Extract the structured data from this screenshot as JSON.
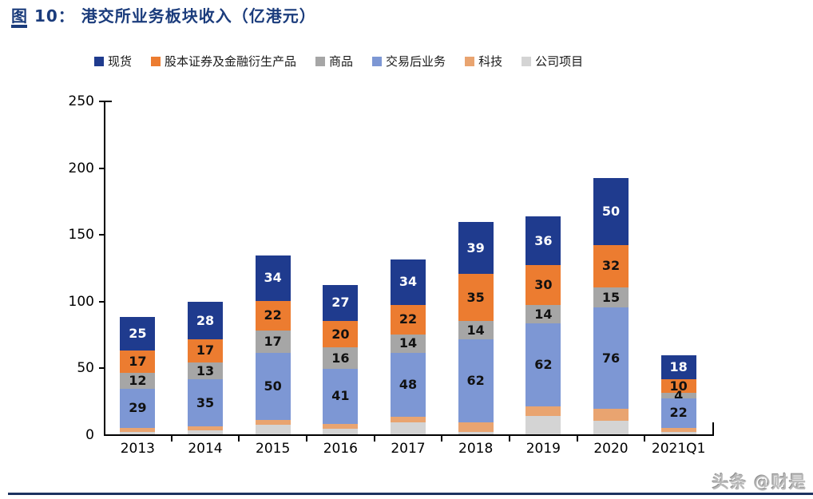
{
  "title": "图 10：  港交所业务板块收入（亿港元）",
  "watermark": "头条 @财是",
  "colors": {
    "title": "#1B3C7C",
    "bottom_rule": "#1C3260",
    "axis": "#000000",
    "navy": "#1F3B8E",
    "orange": "#EC7C30",
    "gray": "#A6A6A6",
    "light_blue": "#7D97D4",
    "tan": "#E9A470",
    "light_gray": "#D4D4D4"
  },
  "chart_data": {
    "type": "bar",
    "subtype": "stacked-column",
    "title": "港交所业务板块收入（亿港元）",
    "xlabel": "",
    "ylabel": "",
    "ylim": [
      0,
      250
    ],
    "yticks": [
      0,
      50,
      100,
      150,
      200,
      250
    ],
    "grid": false,
    "legend_position": "top",
    "categories": [
      "2013",
      "2014",
      "2015",
      "2016",
      "2017",
      "2018",
      "2019",
      "2020",
      "2021Q1"
    ],
    "stack_order_bottom_to_top": [
      "corporate-items",
      "technology",
      "post-trade",
      "commodities",
      "equity-derivatives",
      "spot"
    ],
    "series": [
      {
        "key": "spot",
        "name": "现货",
        "color": "#1F3B8E",
        "label_color": "#ffffff",
        "show_labels": true,
        "values": [
          25,
          28,
          34,
          27,
          34,
          39,
          36,
          50,
          18
        ]
      },
      {
        "key": "equity-derivatives",
        "name": "股本证券及金融衍生产品",
        "color": "#EC7C30",
        "label_color": "#111111",
        "show_labels": true,
        "values": [
          17,
          17,
          22,
          20,
          22,
          35,
          30,
          32,
          10
        ]
      },
      {
        "key": "commodities",
        "name": "商品",
        "color": "#A6A6A6",
        "label_color": "#111111",
        "show_labels": true,
        "values": [
          12,
          13,
          17,
          16,
          14,
          14,
          14,
          15,
          4
        ]
      },
      {
        "key": "post-trade",
        "name": "交易后业务",
        "color": "#7D97D4",
        "label_color": "#111111",
        "show_labels": true,
        "values": [
          29,
          35,
          50,
          41,
          48,
          62,
          62,
          76,
          22
        ]
      },
      {
        "key": "technology",
        "name": "科技",
        "color": "#E9A470",
        "label_color": "#111111",
        "show_labels": false,
        "values_estimated_from_pixels": true,
        "values": [
          3,
          3,
          4,
          4,
          4,
          7,
          7,
          9,
          3
        ]
      },
      {
        "key": "corporate-items",
        "name": "公司项目",
        "color": "#D4D4D4",
        "label_color": "#111111",
        "show_labels": false,
        "values_estimated_from_pixels": true,
        "values": [
          2,
          3,
          7,
          4,
          9,
          2,
          14,
          10,
          2
        ]
      }
    ]
  }
}
